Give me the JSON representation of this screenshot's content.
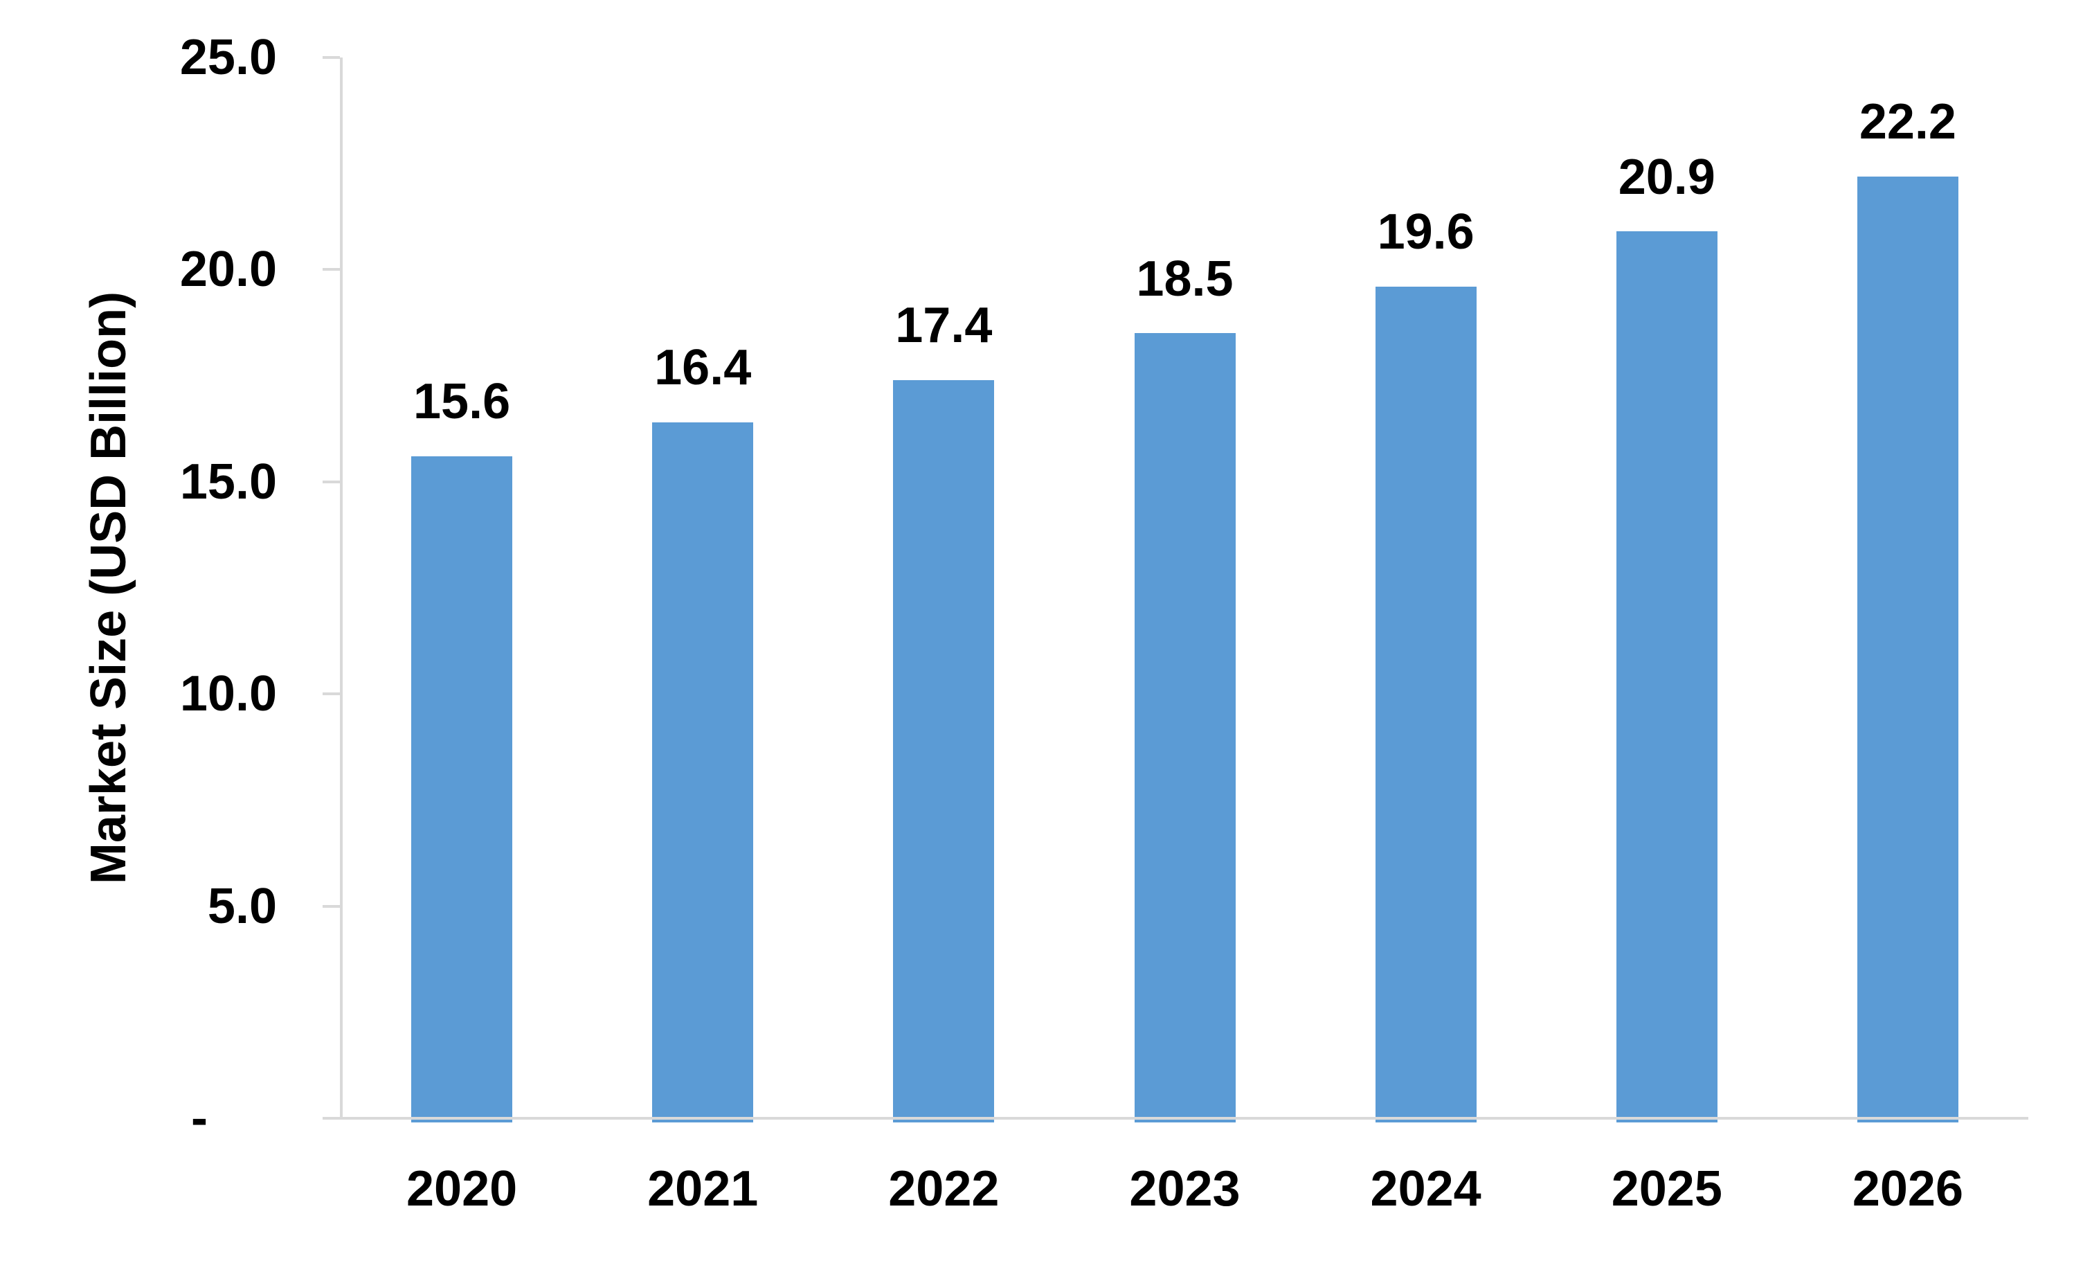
{
  "chart_data": {
    "type": "bar",
    "categories": [
      "2020",
      "2021",
      "2022",
      "2023",
      "2024",
      "2025",
      "2026"
    ],
    "values": [
      15.6,
      16.4,
      17.4,
      18.5,
      19.6,
      20.9,
      22.2
    ],
    "value_labels": [
      "15.6",
      "16.4",
      "17.4",
      "18.5",
      "19.6",
      "20.9",
      "22.2"
    ],
    "ylabel": "Market Size (USD Billion)",
    "xlabel": "",
    "ylim": [
      0,
      25
    ],
    "y_ticks": [
      {
        "value": 25,
        "label": "25.0"
      },
      {
        "value": 20,
        "label": "20.0"
      },
      {
        "value": 15,
        "label": "15.0"
      },
      {
        "value": 10,
        "label": "10.0"
      },
      {
        "value": 5,
        "label": "5.0"
      },
      {
        "value": 0,
        "label": "-"
      }
    ],
    "grid": false,
    "legend": "none",
    "bar_color": "#5B9BD5",
    "axis_color": "#D9D9D9",
    "text_color": "#000000"
  }
}
